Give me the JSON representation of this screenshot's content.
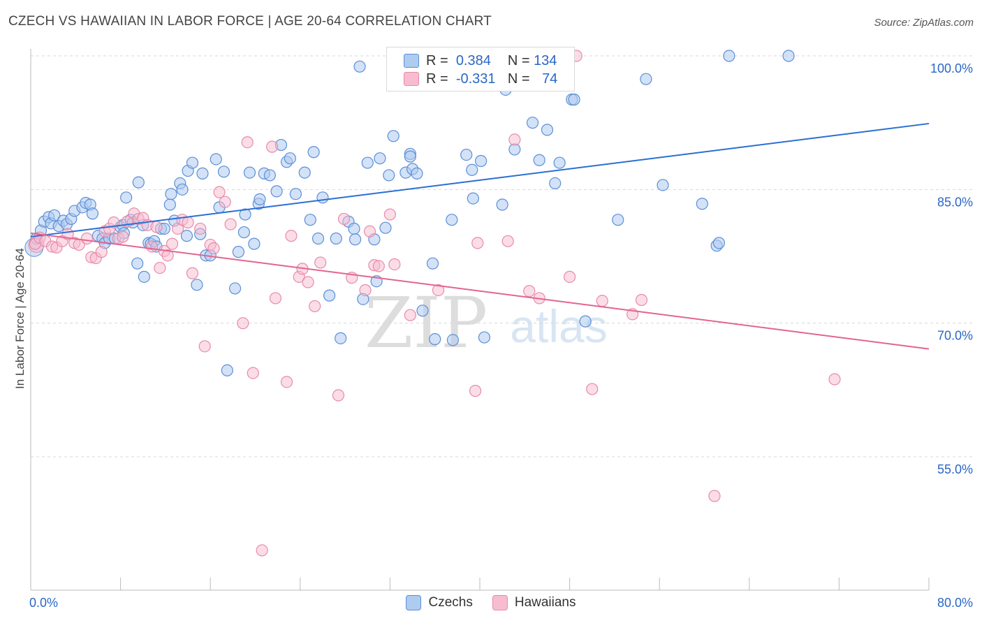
{
  "title": "CZECH VS HAWAIIAN IN LABOR FORCE | AGE 20-64 CORRELATION CHART",
  "source": "Source: ZipAtlas.com",
  "watermark": {
    "zip": "ZIP",
    "atlas": "atlas"
  },
  "colors": {
    "czech_fill": "#aecbf0",
    "czech_stroke": "#5b8fd6",
    "czech_line": "#2a6fd4",
    "hawaiian_fill": "#f7bcd0",
    "hawaiian_stroke": "#e88aa9",
    "hawaiian_line": "#e4648f",
    "value_text": "#2a66c7",
    "grid": "#d8d8d8"
  },
  "legend": {
    "r_label": "R =",
    "n_label": "N =",
    "czech": {
      "r": "0.384",
      "n": "134"
    },
    "hawaiian": {
      "r": "-0.331",
      "n": "74"
    }
  },
  "bottom_legend": {
    "czech": "Czechs",
    "hawaiian": "Hawaiians"
  },
  "chart_data": {
    "type": "scatter",
    "title": "CZECH VS HAWAIIAN IN LABOR FORCE | AGE 20-64 CORRELATION CHART",
    "xlabel": "",
    "ylabel": "In Labor Force | Age 20-64",
    "xlim": [
      0,
      80
    ],
    "ylim": [
      40,
      103
    ],
    "x_tick_labels": [
      {
        "value": 0,
        "label": "0.0%"
      },
      {
        "value": 80,
        "label": "80.0%"
      }
    ],
    "y_tick_labels": [
      {
        "value": 100,
        "label": "100.0%"
      },
      {
        "value": 85,
        "label": "85.0%"
      },
      {
        "value": 70,
        "label": "70.0%"
      },
      {
        "value": 55,
        "label": "55.0%"
      }
    ],
    "x_minor_ticks": [
      0,
      8,
      16,
      24,
      32,
      40,
      48,
      56,
      64,
      72,
      80
    ],
    "series": [
      {
        "name": "Czechs",
        "trend": {
          "x": [
            0,
            80
          ],
          "y": [
            79.7,
            92.4
          ]
        },
        "points": [
          [
            0.5,
            79.5
          ],
          [
            0.9,
            80.4
          ],
          [
            1.2,
            81.4
          ],
          [
            1.6,
            81.9
          ],
          [
            1.8,
            81.2
          ],
          [
            2.1,
            82.1
          ],
          [
            2.5,
            80.9
          ],
          [
            2.9,
            81.5
          ],
          [
            3.2,
            81.1
          ],
          [
            3.6,
            81.7
          ],
          [
            3.9,
            82.6
          ],
          [
            4.6,
            83.0
          ],
          [
            4.9,
            83.5
          ],
          [
            5.3,
            83.3
          ],
          [
            5.5,
            82.3
          ],
          [
            6.0,
            79.8
          ],
          [
            6.4,
            79.5
          ],
          [
            6.6,
            79.0
          ],
          [
            7.0,
            79.5
          ],
          [
            7.5,
            79.5
          ],
          [
            8.0,
            80.8
          ],
          [
            8.2,
            81.0
          ],
          [
            8.3,
            80.1
          ],
          [
            8.5,
            84.1
          ],
          [
            8.9,
            81.6
          ],
          [
            9.1,
            81.3
          ],
          [
            9.5,
            76.7
          ],
          [
            9.6,
            85.8
          ],
          [
            10.0,
            81.0
          ],
          [
            10.1,
            75.2
          ],
          [
            10.5,
            79.0
          ],
          [
            10.7,
            78.9
          ],
          [
            11.0,
            79.2
          ],
          [
            11.2,
            78.6
          ],
          [
            11.6,
            80.6
          ],
          [
            11.9,
            80.6
          ],
          [
            12.4,
            83.3
          ],
          [
            12.5,
            84.5
          ],
          [
            12.8,
            81.5
          ],
          [
            13.3,
            85.7
          ],
          [
            13.5,
            85.0
          ],
          [
            13.9,
            79.8
          ],
          [
            14.0,
            87.1
          ],
          [
            14.4,
            88.0
          ],
          [
            14.8,
            74.3
          ],
          [
            15.1,
            80.0
          ],
          [
            15.3,
            86.8
          ],
          [
            15.6,
            77.6
          ],
          [
            16.0,
            77.6
          ],
          [
            16.5,
            88.4
          ],
          [
            16.8,
            83.0
          ],
          [
            17.2,
            87.0
          ],
          [
            17.5,
            64.7
          ],
          [
            18.2,
            73.9
          ],
          [
            18.5,
            78.0
          ],
          [
            19.0,
            80.2
          ],
          [
            19.1,
            82.2
          ],
          [
            19.5,
            86.9
          ],
          [
            19.9,
            78.9
          ],
          [
            20.3,
            83.4
          ],
          [
            20.4,
            83.9
          ],
          [
            20.8,
            86.8
          ],
          [
            21.3,
            86.6
          ],
          [
            21.9,
            84.8
          ],
          [
            22.3,
            90.0
          ],
          [
            22.8,
            88.1
          ],
          [
            23.1,
            88.5
          ],
          [
            23.6,
            84.5
          ],
          [
            24.4,
            86.9
          ],
          [
            24.9,
            81.6
          ],
          [
            25.2,
            89.2
          ],
          [
            25.6,
            79.5
          ],
          [
            26.0,
            84.1
          ],
          [
            26.6,
            73.1
          ],
          [
            27.2,
            79.5
          ],
          [
            27.6,
            68.3
          ],
          [
            28.3,
            81.4
          ],
          [
            28.8,
            80.6
          ],
          [
            28.9,
            79.4
          ],
          [
            29.3,
            98.8
          ],
          [
            29.6,
            72.7
          ],
          [
            30.0,
            88.0
          ],
          [
            30.6,
            79.4
          ],
          [
            30.8,
            74.7
          ],
          [
            31.1,
            88.5
          ],
          [
            31.6,
            80.7
          ],
          [
            31.9,
            86.6
          ],
          [
            32.3,
            91.0
          ],
          [
            33.4,
            86.9
          ],
          [
            33.8,
            89.0
          ],
          [
            33.8,
            88.7
          ],
          [
            34.0,
            87.3
          ],
          [
            34.4,
            86.8
          ],
          [
            34.9,
            71.4
          ],
          [
            35.8,
            76.7
          ],
          [
            36.0,
            68.2
          ],
          [
            37.5,
            81.6
          ],
          [
            37.6,
            68.1
          ],
          [
            38.8,
            88.9
          ],
          [
            39.3,
            87.2
          ],
          [
            39.4,
            84.0
          ],
          [
            40.1,
            88.2
          ],
          [
            40.4,
            68.4
          ],
          [
            42.0,
            83.3
          ],
          [
            42.3,
            96.2
          ],
          [
            42.3,
            97.0
          ],
          [
            42.7,
            100.0
          ],
          [
            43.1,
            89.5
          ],
          [
            44.7,
            92.5
          ],
          [
            45.3,
            88.3
          ],
          [
            46.0,
            91.7
          ],
          [
            46.7,
            85.7
          ],
          [
            47.1,
            88.0
          ],
          [
            48.2,
            95.1
          ],
          [
            48.4,
            95.1
          ],
          [
            49.4,
            70.2
          ],
          [
            52.3,
            81.6
          ],
          [
            54.8,
            97.4
          ],
          [
            56.3,
            85.5
          ],
          [
            59.8,
            83.4
          ],
          [
            61.1,
            78.7
          ],
          [
            61.3,
            79.0
          ],
          [
            62.2,
            100.0
          ],
          [
            67.5,
            100.0
          ]
        ]
      },
      {
        "name": "Hawaiians",
        "trend": {
          "x": [
            0,
            80
          ],
          "y": [
            80.1,
            67.1
          ]
        },
        "points": [
          [
            0.4,
            78.9
          ],
          [
            0.8,
            79.6
          ],
          [
            1.3,
            79.2
          ],
          [
            1.9,
            78.6
          ],
          [
            2.3,
            78.5
          ],
          [
            2.8,
            79.2
          ],
          [
            3.3,
            80.0
          ],
          [
            3.9,
            79.0
          ],
          [
            4.3,
            78.8
          ],
          [
            5.0,
            79.5
          ],
          [
            5.4,
            77.4
          ],
          [
            5.8,
            77.3
          ],
          [
            6.3,
            78.0
          ],
          [
            6.6,
            80.3
          ],
          [
            7.0,
            80.6
          ],
          [
            7.4,
            81.3
          ],
          [
            7.8,
            79.5
          ],
          [
            8.2,
            79.7
          ],
          [
            8.6,
            81.4
          ],
          [
            9.2,
            82.3
          ],
          [
            9.6,
            81.7
          ],
          [
            10.0,
            81.8
          ],
          [
            10.4,
            81.0
          ],
          [
            10.8,
            78.6
          ],
          [
            11.2,
            80.8
          ],
          [
            11.5,
            76.2
          ],
          [
            11.9,
            78.1
          ],
          [
            12.2,
            77.6
          ],
          [
            12.6,
            78.9
          ],
          [
            13.1,
            80.6
          ],
          [
            13.5,
            81.6
          ],
          [
            14.0,
            81.3
          ],
          [
            14.4,
            75.6
          ],
          [
            15.1,
            80.6
          ],
          [
            15.5,
            67.4
          ],
          [
            16.0,
            78.8
          ],
          [
            16.3,
            78.4
          ],
          [
            16.8,
            84.7
          ],
          [
            17.3,
            83.6
          ],
          [
            17.8,
            81.1
          ],
          [
            18.9,
            70.0
          ],
          [
            19.3,
            90.3
          ],
          [
            19.8,
            64.4
          ],
          [
            20.6,
            44.5
          ],
          [
            21.5,
            89.8
          ],
          [
            21.8,
            72.8
          ],
          [
            22.8,
            63.4
          ],
          [
            23.2,
            79.8
          ],
          [
            23.9,
            75.2
          ],
          [
            24.2,
            76.1
          ],
          [
            24.7,
            74.6
          ],
          [
            25.3,
            71.9
          ],
          [
            25.8,
            76.8
          ],
          [
            27.4,
            61.9
          ],
          [
            27.9,
            81.7
          ],
          [
            28.6,
            75.1
          ],
          [
            29.8,
            73.7
          ],
          [
            30.2,
            80.3
          ],
          [
            30.6,
            76.5
          ],
          [
            31.0,
            76.4
          ],
          [
            32.0,
            82.2
          ],
          [
            32.4,
            76.6
          ],
          [
            33.8,
            70.9
          ],
          [
            36.3,
            73.7
          ],
          [
            39.6,
            62.4
          ],
          [
            39.8,
            79.0
          ],
          [
            42.5,
            79.2
          ],
          [
            43.1,
            90.6
          ],
          [
            44.4,
            73.6
          ],
          [
            45.3,
            72.8
          ],
          [
            48.0,
            75.2
          ],
          [
            48.6,
            100.0
          ],
          [
            50.0,
            62.6
          ],
          [
            50.9,
            72.5
          ],
          [
            53.6,
            71.0
          ],
          [
            54.4,
            72.6
          ],
          [
            60.9,
            50.6
          ],
          [
            71.6,
            63.7
          ]
        ]
      }
    ]
  }
}
